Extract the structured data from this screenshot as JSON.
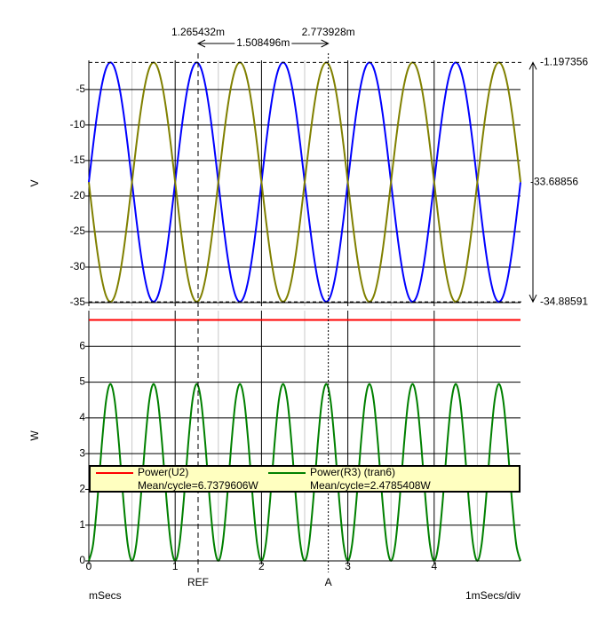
{
  "chart_data": [
    {
      "type": "line",
      "y_label": "V",
      "x": [
        0,
        0.05,
        0.1,
        0.15,
        0.2,
        0.25,
        0.3,
        0.35,
        0.4,
        0.45,
        0.5,
        0.55,
        0.6,
        0.65,
        0.7,
        0.75,
        0.8,
        0.85,
        0.9,
        0.95,
        1,
        1.05,
        1.1,
        1.15,
        1.2,
        1.25,
        1.3,
        1.35,
        1.4,
        1.45,
        1.5,
        1.55,
        1.6,
        1.65,
        1.7,
        1.75,
        1.8,
        1.85,
        1.9,
        1.95,
        2,
        2.05,
        2.1,
        2.15,
        2.2,
        2.25,
        2.3,
        2.35,
        2.4,
        2.45,
        2.5,
        2.55,
        2.6,
        2.65,
        2.7,
        2.75,
        2.8,
        2.85,
        2.9,
        2.95,
        3,
        3.05,
        3.1,
        3.15,
        3.2,
        3.25,
        3.3,
        3.35,
        3.4,
        3.45,
        3.5,
        3.55,
        3.6,
        3.65,
        3.7,
        3.75,
        3.8,
        3.85,
        3.9,
        3.95,
        4,
        4.05,
        4.1,
        4.15,
        4.2,
        4.25,
        4.3,
        4.35,
        4.4,
        4.45,
        4.5,
        4.55,
        4.6,
        4.65,
        4.7,
        4.75,
        4.8,
        4.85,
        4.9,
        4.95,
        5
      ],
      "series": [
        {
          "color": "#0000ff",
          "values": [
            -18.04,
            -12.84,
            -8.14,
            -4.42,
            -2.02,
            -1.2,
            -2.02,
            -4.42,
            -8.14,
            -12.84,
            -18.04,
            -23.24,
            -27.94,
            -31.66,
            -34.06,
            -34.88,
            -34.06,
            -31.66,
            -27.94,
            -23.24,
            -18.04,
            -12.84,
            -8.14,
            -4.42,
            -2.02,
            -1.2,
            -2.02,
            -4.42,
            -8.14,
            -12.84,
            -18.04,
            -23.24,
            -27.94,
            -31.66,
            -34.06,
            -34.88,
            -34.06,
            -31.66,
            -27.94,
            -23.24,
            -18.04,
            -12.84,
            -8.14,
            -4.42,
            -2.02,
            -1.2,
            -2.02,
            -4.42,
            -8.14,
            -12.84,
            -18.04,
            -23.24,
            -27.94,
            -31.66,
            -34.06,
            -34.88,
            -34.06,
            -31.66,
            -27.94,
            -23.24,
            -18.04,
            -12.84,
            -8.14,
            -4.42,
            -2.02,
            -1.2,
            -2.02,
            -4.42,
            -8.14,
            -12.84,
            -18.04,
            -23.24,
            -27.94,
            -31.66,
            -34.06,
            -34.88,
            -34.06,
            -31.66,
            -27.94,
            -23.24,
            -18.04,
            -12.84,
            -8.14,
            -4.42,
            -2.02,
            -1.2,
            -2.02,
            -4.42,
            -8.14,
            -12.84,
            -18.04,
            -23.24,
            -27.94,
            -31.66,
            -34.06,
            -34.88,
            -34.06,
            -31.66,
            -27.94,
            -23.24,
            -18.04
          ]
        },
        {
          "color": "#808000",
          "values": [
            -18.04,
            -23.24,
            -27.94,
            -31.66,
            -34.06,
            -34.88,
            -34.06,
            -31.66,
            -27.94,
            -23.24,
            -18.04,
            -12.84,
            -8.14,
            -4.42,
            -2.02,
            -1.2,
            -2.02,
            -4.42,
            -8.14,
            -12.84,
            -18.04,
            -23.24,
            -27.94,
            -31.66,
            -34.06,
            -34.88,
            -34.06,
            -31.66,
            -27.94,
            -23.24,
            -18.04,
            -12.84,
            -8.14,
            -4.42,
            -2.02,
            -1.2,
            -2.02,
            -4.42,
            -8.14,
            -12.84,
            -18.04,
            -23.24,
            -27.94,
            -31.66,
            -34.06,
            -34.88,
            -34.06,
            -31.66,
            -27.94,
            -23.24,
            -18.04,
            -12.84,
            -8.14,
            -4.42,
            -2.02,
            -1.2,
            -2.02,
            -4.42,
            -8.14,
            -12.84,
            -18.04,
            -23.24,
            -27.94,
            -31.66,
            -34.06,
            -34.88,
            -34.06,
            -31.66,
            -27.94,
            -23.24,
            -18.04,
            -12.84,
            -8.14,
            -4.42,
            -2.02,
            -1.2,
            -2.02,
            -4.42,
            -8.14,
            -12.84,
            -18.04,
            -23.24,
            -27.94,
            -31.66,
            -34.06,
            -34.88,
            -34.06,
            -31.66,
            -27.94,
            -23.24,
            -18.04,
            -12.84,
            -8.14,
            -4.42,
            -2.02,
            -1.2,
            -2.02,
            -4.42,
            -8.14,
            -12.84,
            -18.04
          ]
        }
      ],
      "xlim": [
        0,
        5
      ],
      "ylim": [
        -35.5,
        -0.9
      ],
      "yticks": [
        -5,
        -10,
        -15,
        -20,
        -25,
        -30,
        -35
      ],
      "grid": true,
      "readouts": {
        "top": -1.197356,
        "middle": -33.68856,
        "bottom": -34.88591
      }
    },
    {
      "type": "line",
      "y_label": "W",
      "x_label": "mSecs",
      "scale_label": "1mSecs/div",
      "x": [
        0,
        0.05,
        0.1,
        0.15,
        0.2,
        0.25,
        0.3,
        0.35,
        0.4,
        0.45,
        0.5,
        0.55,
        0.6,
        0.65,
        0.7,
        0.75,
        0.8,
        0.85,
        0.9,
        0.95,
        1,
        1.05,
        1.1,
        1.15,
        1.2,
        1.25,
        1.3,
        1.35,
        1.4,
        1.45,
        1.5,
        1.55,
        1.6,
        1.65,
        1.7,
        1.75,
        1.8,
        1.85,
        1.9,
        1.95,
        2,
        2.05,
        2.1,
        2.15,
        2.2,
        2.25,
        2.3,
        2.35,
        2.4,
        2.45,
        2.5,
        2.55,
        2.6,
        2.65,
        2.7,
        2.75,
        2.8,
        2.85,
        2.9,
        2.95,
        3,
        3.05,
        3.1,
        3.15,
        3.2,
        3.25,
        3.3,
        3.35,
        3.4,
        3.45,
        3.5,
        3.55,
        3.6,
        3.65,
        3.7,
        3.75,
        3.8,
        3.85,
        3.9,
        3.95,
        4,
        4.05,
        4.1,
        4.15,
        4.2,
        4.25,
        4.3,
        4.35,
        4.4,
        4.45,
        4.5,
        4.55,
        4.6,
        4.65,
        4.7,
        4.75,
        4.8,
        4.85,
        4.9,
        4.95,
        5
      ],
      "series": [
        {
          "name": "Power(U2)",
          "mean_label": "Mean/cycle=6.7379606W",
          "color": "#ff0000",
          "x": [
            0,
            5
          ],
          "values": [
            6.7379606,
            6.7379606
          ]
        },
        {
          "name": "Power(R3) (tran6)",
          "mean_label": "Mean/cycle=2.4785408W",
          "color": "#008000",
          "values": [
            0,
            0.47,
            1.71,
            3.24,
            4.48,
            4.95,
            4.48,
            3.24,
            1.71,
            0.47,
            0,
            0.47,
            1.71,
            3.24,
            4.48,
            4.95,
            4.48,
            3.24,
            1.71,
            0.47,
            0,
            0.47,
            1.71,
            3.24,
            4.48,
            4.95,
            4.48,
            3.24,
            1.71,
            0.47,
            0,
            0.47,
            1.71,
            3.24,
            4.48,
            4.95,
            4.48,
            3.24,
            1.71,
            0.47,
            0,
            0.47,
            1.71,
            3.24,
            4.48,
            4.95,
            4.48,
            3.24,
            1.71,
            0.47,
            0,
            0.47,
            1.71,
            3.24,
            4.48,
            4.95,
            4.48,
            3.24,
            1.71,
            0.47,
            0,
            0.47,
            1.71,
            3.24,
            4.48,
            4.95,
            4.48,
            3.24,
            1.71,
            0.47,
            0,
            0.47,
            1.71,
            3.24,
            4.48,
            4.95,
            4.48,
            3.24,
            1.71,
            0.47,
            0,
            0.47,
            1.71,
            3.24,
            4.48,
            4.95,
            4.48,
            3.24,
            1.71,
            0.47,
            0,
            0.47,
            1.71,
            3.24,
            4.48,
            4.95,
            4.48,
            3.24,
            1.71,
            0.47,
            0
          ]
        }
      ],
      "xlim": [
        0,
        5
      ],
      "ylim": [
        0,
        7
      ],
      "xticks": [
        0,
        1,
        2,
        3,
        4
      ],
      "minor_xticks": [
        0.5,
        1.5,
        2.5,
        3.5,
        4.5
      ],
      "yticks": [
        0,
        1,
        2,
        3,
        4,
        5,
        6
      ],
      "grid": true
    }
  ],
  "cursors": [
    {
      "label": "REF",
      "x": 1.265432,
      "readout": "1.265432m"
    },
    {
      "label": "A",
      "x": 2.773928,
      "readout": "2.773928m"
    }
  ],
  "cursor_delta": {
    "value": 1.508496,
    "label": "1.508496m"
  }
}
